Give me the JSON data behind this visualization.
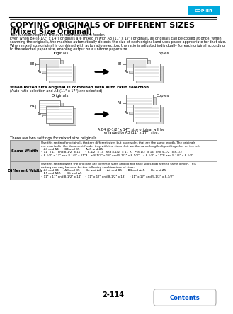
{
  "page_bg": "#ffffff",
  "header_bar_color": "#00aadd",
  "header_text": "COPIER",
  "title_line1": "COPYING ORIGINALS OF DIFFERENT SIZES",
  "title_line2": "(Mixed Size Original)",
  "body_text_lines": [
    "This function requires the automatic document feeder.",
    "Even when B4 (8-1/2\" x 14\") originals are mixed in with A3 (11\" x 17\") originals, all originals can be copied at once. When",
    "scanning the originals, the machine automatically detects the size of each original and uses paper appropriate for that size.",
    "When mixed size original is combined with auto ratio selection, the ratio is adjusted individually for each original according",
    "to the selected paper size, enabling output on a uniform paper size."
  ],
  "diag1_orig_label": "Originals",
  "diag1_copy_label": "Copies",
  "section2_bold": "When mixed size original is combined with auto ratio selection",
  "section2_italic": "(Auto ratio selection and A3 (11\" x 17\") are selected)",
  "diag2_orig_label": "Originals",
  "diag2_copy_label": "Copies",
  "caption_line1": "A B4 (8-1/2\" x 14\") size original will be",
  "caption_line2": "enlarged to A3 (11\" x 17\") size.",
  "table_intro": "There are two settings for mixed size originals.",
  "row1_label": "Same Width",
  "row1_lines": [
    "Use this setting for originals that are different sizes but have sides that are the same length. The originals",
    "are inserted in the document feeder tray with the sides that are the same length aligned together on the left.",
    "• A3 and A4    • B4 and B5    • A4R and A5",
    "• 11\" x 17\" and 8-1/2\" x 11\"    • 8-1/2\" x 14\" and 8-1/2\" x 11\"R    • 8-1/2\" x 14\" and 5-1/2\" x 8-1/2\"",
    "• 8-1/2\" x 13\" and 8-1/2\" x 11\"R    • 8-1/2\" x 13\" and 5-1/2\" x 8-1/2\"    • 8-1/2\" x 11\"R and 5-1/2\" x 8-1/2\""
  ],
  "row2_label": "Different Width",
  "row2_lines": [
    "Use this setting when the originals are different sizes and do not have sides that are the same length. This",
    "setting can only be used for the following combinations of sizes:",
    "• A3 and B4    • A3 and B5    • B4 and A4    • A4 and B5    • B4 and A4R    • B4 and A5",
    "• B5 and A4R    • B5 and A5",
    "• 11\" x 17\" and 8-1/2\" x 14\"    • 11\" x 17\" and 8-1/2\" x 13\"    • 11\" x 17\" and 5-1/2\" x 8-1/2\""
  ],
  "page_num": "2-114",
  "contents_text": "Contents",
  "contents_color": "#0055cc"
}
